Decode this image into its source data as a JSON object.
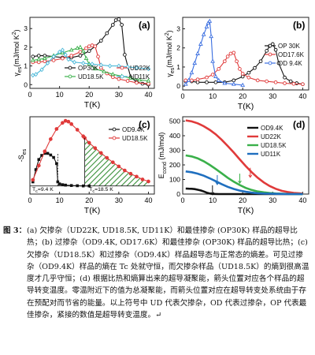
{
  "figure": {
    "panels": [
      {
        "id": "a",
        "label": "(a)",
        "xlabel": "T(K)",
        "ylabel": "γ_es (mJ/mol K²)",
        "ylabel_main": "γ",
        "ylabel_sub": "es",
        "ylabel_units": "(mJ/mol K",
        "ylabel_sup": "2",
        "ylabel_close": ")",
        "xticks": [
          "0",
          "10",
          "20",
          "30",
          "40"
        ],
        "yticks": [
          "0",
          "1",
          "2",
          "3"
        ],
        "legend": [
          "OP30K",
          "UD22K",
          "UD18.5K",
          "UD11K"
        ],
        "colors": {
          "OP30K": "#111111",
          "UD22K": "#e03a3a",
          "UD18.5K": "#3ab04a",
          "UD11K": "#4ab8d8"
        }
      },
      {
        "id": "b",
        "label": "(b)",
        "xlabel": "T(K)",
        "ylabel": "γ_es (mJ/mol K²)",
        "ylabel_main": "γ",
        "ylabel_sub": "es",
        "ylabel_units": "(mJ/mol K",
        "ylabel_sup": "2",
        "ylabel_close": ")",
        "xticks": [
          "0",
          "10",
          "20",
          "30",
          "40"
        ],
        "yticks": [
          "0",
          "1",
          "2",
          "3"
        ],
        "legend": [
          "OP 30K",
          "OD17.6K",
          "OD 9.4K"
        ],
        "colors": {
          "OP 30K": "#111111",
          "OD17.6K": "#e03a3a",
          "OD 9.4K": "#3a6ee0"
        }
      },
      {
        "id": "c",
        "label": "(c)",
        "xlabel": "T(K)",
        "ylabel": "-S_es",
        "ylabel_main": "-S",
        "ylabel_sub": "es",
        "xticks": [
          "0",
          "10",
          "20",
          "30",
          "40"
        ],
        "legend": [
          "OD9.4K",
          "UD18.5K"
        ],
        "colors": {
          "OD9.4K": "#111111",
          "UD18.5K": "#e03a3a",
          "hatch": "#2e8a2e"
        },
        "annotations": [
          "T_c=9.4 K",
          "T_c=18.5 K"
        ],
        "annot1_main": "T",
        "annot1_sub": "c",
        "annot1_rest": "=9.4 K",
        "annot2_main": "T",
        "annot2_sub": "c",
        "annot2_rest": "=18.5 K"
      },
      {
        "id": "d",
        "label": "(d)",
        "xlabel": "T(K)",
        "ylabel": "E_cond (mJ/mol)",
        "ylabel_main": "E",
        "ylabel_sub": "cond",
        "ylabel_units": " (mJ/mol)",
        "xticks": [
          "0",
          "10",
          "20",
          "30",
          "40"
        ],
        "yticks": [
          "0",
          "100",
          "200",
          "300",
          "400",
          "500"
        ],
        "legend": [
          "OD9.4K",
          "UD22K",
          "UD18.5K",
          "UD11K"
        ],
        "colors": {
          "OD9.4K": "#111111",
          "UD22K": "#e03a3a",
          "UD18.5K": "#3ab04a",
          "UD11K": "#1f6fbf"
        }
      }
    ]
  },
  "chart_data": [
    {
      "type": "line",
      "panel": "a",
      "xlabel": "T(K)",
      "ylabel": "γes (mJ/mol K2)",
      "xlim": [
        0,
        42
      ],
      "ylim": [
        -0.2,
        3.6
      ],
      "series": [
        {
          "name": "OP30K",
          "x": [
            1,
            3,
            5,
            8,
            11,
            14,
            17,
            20,
            22,
            24,
            26,
            28,
            29,
            30,
            31,
            32,
            34,
            36,
            38,
            40
          ],
          "y": [
            1.5,
            1.55,
            1.55,
            1.5,
            1.45,
            1.45,
            1.55,
            1.8,
            2.05,
            2.35,
            2.75,
            3.2,
            3.45,
            3.5,
            3.2,
            1.6,
            0.4,
            0.15,
            0.05,
            0.0
          ]
        },
        {
          "name": "UD22K",
          "x": [
            1,
            3,
            5,
            8,
            11,
            14,
            17,
            19,
            20,
            21,
            22,
            23,
            24,
            26,
            28,
            30,
            33,
            36,
            40
          ],
          "y": [
            1.2,
            1.2,
            1.25,
            1.3,
            1.4,
            1.55,
            1.75,
            1.95,
            2.05,
            2.1,
            2.05,
            1.5,
            0.9,
            0.6,
            0.4,
            0.3,
            0.2,
            0.1,
            0.05
          ]
        },
        {
          "name": "UD18.5K",
          "x": [
            1,
            3,
            5,
            8,
            11,
            14,
            16,
            17,
            18,
            19,
            20,
            22,
            25,
            28,
            31,
            34,
            37,
            40
          ],
          "y": [
            1.3,
            1.35,
            1.4,
            1.55,
            1.7,
            1.85,
            1.95,
            2.0,
            1.8,
            1.4,
            1.1,
            0.85,
            0.7,
            0.55,
            0.45,
            0.35,
            0.25,
            0.2
          ]
        },
        {
          "name": "UD11K",
          "x": [
            1,
            2,
            4,
            6,
            8,
            10,
            11,
            12,
            13,
            15,
            18,
            21,
            24,
            27,
            30,
            33,
            36,
            40
          ],
          "y": [
            0.5,
            0.55,
            0.8,
            1.15,
            1.5,
            1.75,
            1.85,
            1.6,
            1.35,
            1.2,
            1.15,
            1.1,
            1.05,
            1.0,
            1.0,
            0.95,
            0.9,
            0.85
          ]
        }
      ]
    },
    {
      "type": "line",
      "panel": "b",
      "xlabel": "T(K)",
      "ylabel": "γes (mJ/mol K2)",
      "xlim": [
        0,
        42
      ],
      "ylim": [
        -0.2,
        3.6
      ],
      "series": [
        {
          "name": "OP 30K",
          "x": [
            1,
            3,
            5,
            8,
            11,
            14,
            17,
            20,
            22,
            24,
            26,
            28,
            29,
            30,
            31,
            32,
            34,
            36,
            38,
            40
          ],
          "y": [
            0.25,
            0.25,
            0.2,
            0.2,
            0.2,
            0.2,
            0.3,
            0.5,
            0.7,
            0.95,
            1.3,
            1.85,
            2.1,
            2.2,
            1.9,
            1.2,
            0.45,
            0.25,
            0.15,
            0.1
          ]
        },
        {
          "name": "OD17.6K",
          "x": [
            1,
            3,
            5,
            8,
            10,
            12,
            14,
            15,
            16,
            17,
            18,
            19,
            20,
            22,
            25,
            28,
            31,
            34,
            37,
            40
          ],
          "y": [
            0.3,
            0.3,
            0.35,
            0.45,
            0.6,
            0.9,
            1.3,
            1.55,
            1.7,
            1.75,
            1.3,
            0.9,
            0.65,
            0.45,
            0.3,
            0.25,
            0.2,
            0.15,
            0.12,
            0.1
          ]
        },
        {
          "name": "OD 9.4K",
          "x": [
            1,
            2,
            3,
            4,
            5,
            6,
            7,
            8,
            8.5,
            9,
            9.5,
            10,
            11,
            12,
            14,
            17,
            20
          ],
          "y": [
            0.1,
            0.3,
            0.7,
            1.2,
            1.7,
            2.2,
            2.7,
            3.1,
            3.3,
            3.4,
            2.6,
            1.3,
            0.5,
            0.3,
            0.15,
            0.1,
            0.05
          ]
        }
      ]
    },
    {
      "type": "line",
      "panel": "c",
      "xlabel": "T(K)",
      "ylabel": "-Ses",
      "xlim": [
        0,
        42
      ],
      "ylim": [
        -2,
        17
      ],
      "series": [
        {
          "name": "OD9.4K",
          "x": [
            1,
            2,
            3,
            4,
            5,
            6,
            7,
            8,
            9,
            9.4,
            10,
            11,
            12,
            14,
            16,
            18,
            20
          ],
          "y": [
            1,
            4,
            6.5,
            7.5,
            8,
            8,
            7.6,
            7,
            5.5,
            1,
            0.5,
            0.3,
            0.2,
            0.1,
            0.05,
            0,
            0
          ]
        },
        {
          "name": "UD18.5K",
          "x": [
            1,
            3,
            5,
            7,
            9,
            11,
            12,
            13,
            14,
            16,
            18,
            18.5,
            20,
            22,
            24,
            26,
            28,
            30,
            32,
            34,
            36,
            38,
            40
          ],
          "y": [
            1.5,
            5,
            8.5,
            11.5,
            14,
            15.5,
            16,
            15.8,
            15.2,
            13.8,
            12.2,
            11.8,
            10.6,
            9.3,
            8.1,
            6.9,
            5.8,
            4.8,
            3.8,
            3,
            2.3,
            1.6,
            1.1
          ]
        }
      ]
    },
    {
      "type": "line",
      "panel": "d",
      "xlabel": "T(K)",
      "ylabel": "Econd (mJ/mol)",
      "xlim": [
        0,
        42
      ],
      "ylim": [
        0,
        530
      ],
      "series": [
        {
          "name": "OD9.4K",
          "x": [
            1,
            2,
            3,
            4,
            5,
            6,
            7,
            8,
            9,
            10,
            12,
            16,
            20,
            30,
            40
          ],
          "y": [
            38,
            37,
            36,
            34,
            30,
            25,
            18,
            10,
            4,
            1,
            0,
            0,
            0,
            0,
            0
          ]
        },
        {
          "name": "UD22K",
          "x": [
            1,
            3,
            5,
            7,
            9,
            11,
            13,
            15,
            17,
            19,
            21,
            23,
            25,
            27,
            29,
            31,
            33,
            35,
            37,
            39,
            40
          ],
          "y": [
            505,
            498,
            485,
            465,
            440,
            410,
            372,
            330,
            285,
            238,
            192,
            150,
            112,
            80,
            55,
            36,
            22,
            14,
            8,
            5,
            3
          ]
        },
        {
          "name": "UD18.5K",
          "x": [
            1,
            3,
            5,
            7,
            9,
            11,
            13,
            15,
            17,
            19,
            21,
            23,
            25,
            27,
            29,
            31,
            33,
            35,
            37,
            40
          ],
          "y": [
            265,
            258,
            245,
            225,
            200,
            172,
            142,
            112,
            85,
            62,
            42,
            28,
            18,
            12,
            7,
            4,
            2,
            1,
            0,
            0
          ]
        },
        {
          "name": "UD11K",
          "x": [
            1,
            3,
            5,
            7,
            9,
            11,
            13,
            15,
            17,
            19,
            21,
            23,
            25,
            27,
            30,
            33,
            36,
            40
          ],
          "y": [
            155,
            150,
            140,
            126,
            108,
            88,
            68,
            50,
            35,
            24,
            16,
            10,
            6,
            4,
            2,
            1,
            0,
            0
          ]
        }
      ]
    }
  ],
  "caption": {
    "label": "图 3：",
    "text": "(a) 欠掺杂（UD22K, UD18.5K, UD11K）和最佳掺杂 (OP30K) 样品的超导比热；(b) 过掺杂（OD9.4K, OD17.6K）和最佳掺杂 (OP30K) 样品的超导比热；(c) 欠掺杂（UD18.5K）和过掺杂（OD9.4K）样品超导态与正常态的熵差。可见过掺杂（OD9.4K）样品的熵在 Tc 处就守恒，而欠掺杂样品（UD18.5K）的熵到很高温度才几乎守恒；(d) 根据比热和熵算出来的超导凝聚能，箭头位置对应各个样品的超导转变温度。零温附近下的值为总凝聚能，而箭头位置对应在超导转变处系统由于存在预配对而节省的能量。以上符号中 UD 代表欠掺杂，OD 代表过掺杂，OP 代表最佳掺杂，紧接的数值是超导转变温度。↵"
  }
}
